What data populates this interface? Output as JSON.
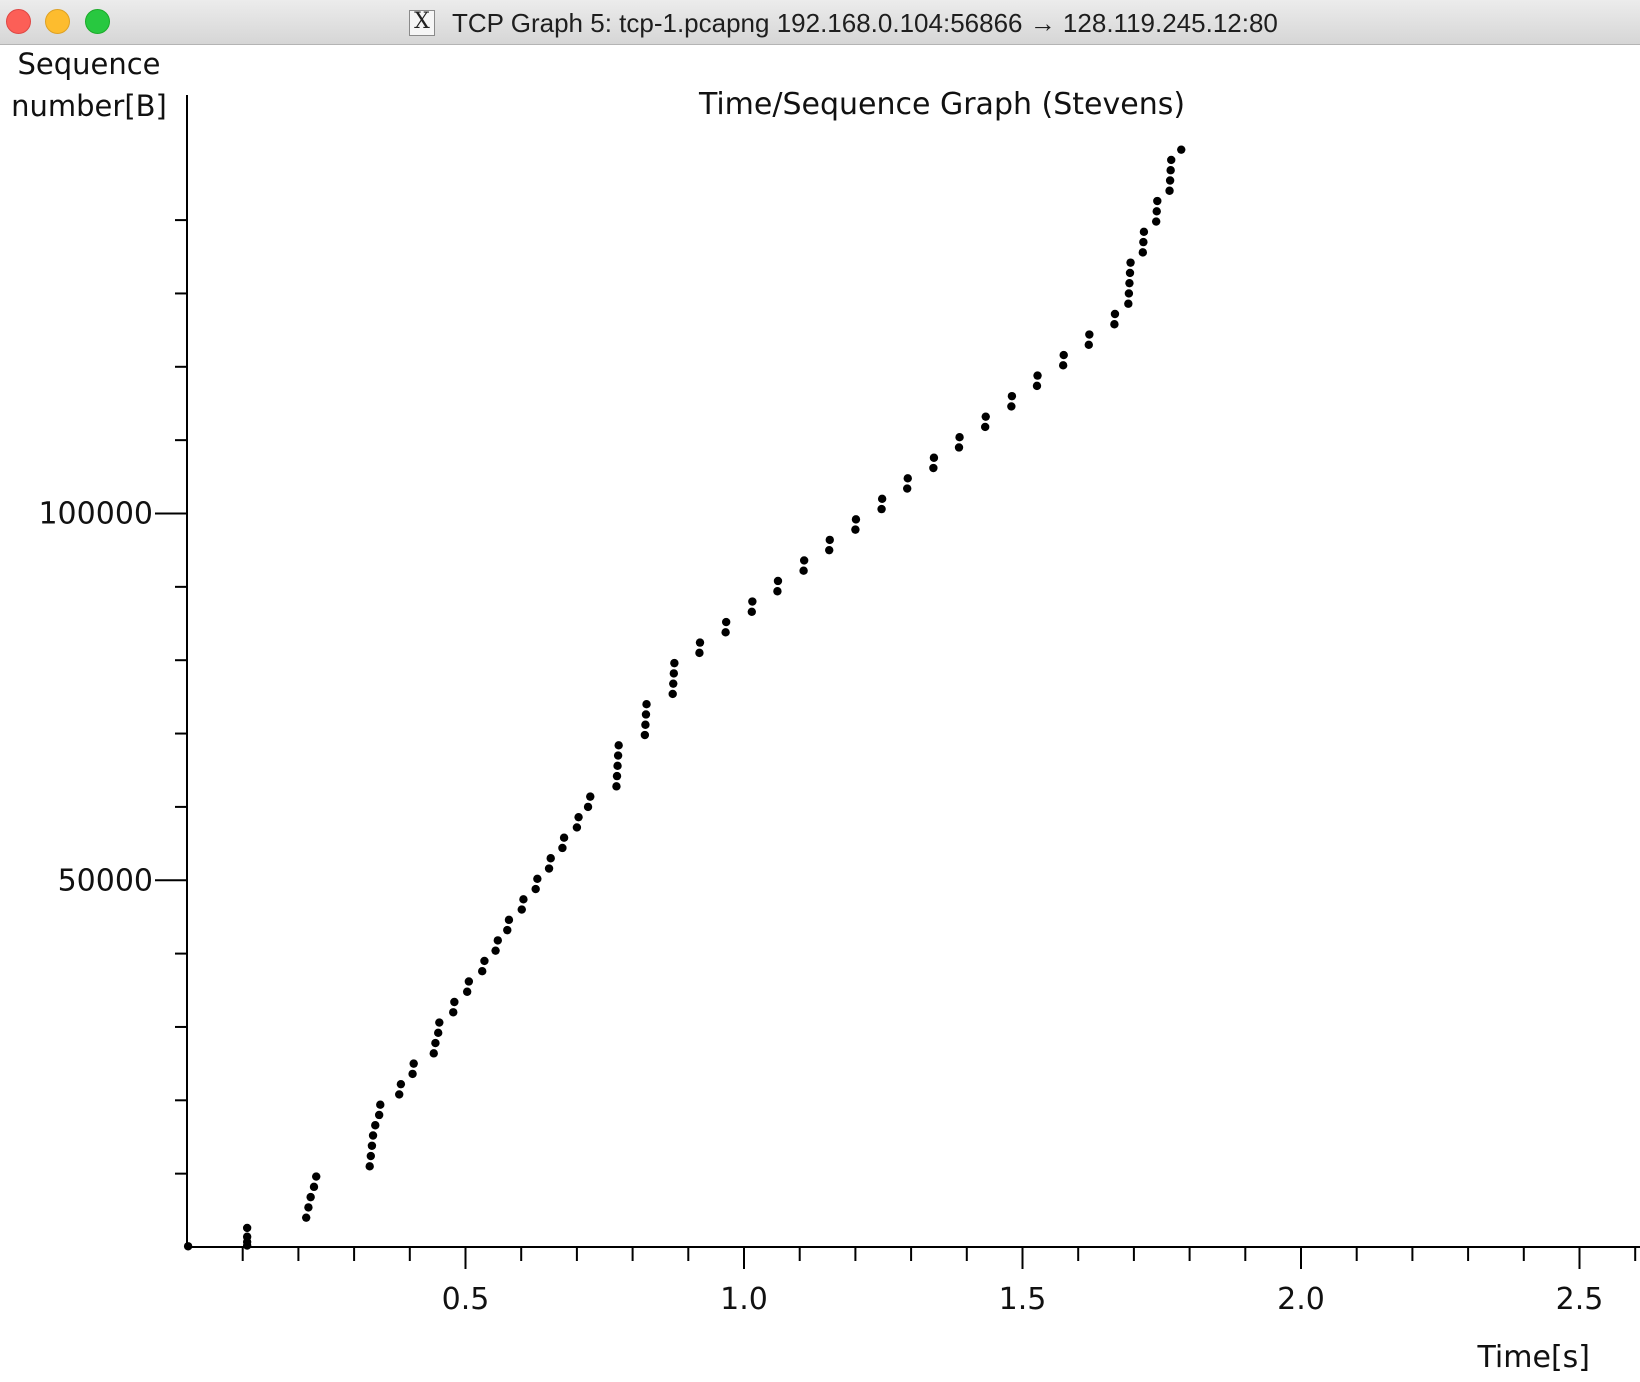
{
  "window": {
    "title": "TCP Graph 5: tcp-1.pcapng 192.168.0.104:56866 → 128.119.245.12:80",
    "icon": "x11-icon",
    "icon_glyph": "X"
  },
  "chart_data": {
    "type": "scatter",
    "title": "Time/Sequence Graph (Stevens)",
    "ylabel_lines": [
      "Sequence",
      "number[B]"
    ],
    "xlabel": "Time[s]",
    "xlim": [
      0.0,
      2.6
    ],
    "ylim": [
      0,
      145000
    ],
    "x_ticks": [
      0.5,
      1.0,
      1.5,
      2.0,
      2.5
    ],
    "x_tick_labels": [
      "0.5",
      "1.0",
      "1.5",
      "2.0",
      "2.5"
    ],
    "x_minor_step": 0.1,
    "y_ticks": [
      50000,
      100000
    ],
    "y_tick_labels": [
      "50000",
      "100000"
    ],
    "y_minor_step": 10000,
    "grid": false,
    "marker_color": "#000000",
    "series": [
      {
        "points": [
          [
            0.002,
            100
          ],
          [
            0.108,
            200
          ],
          [
            0.108,
            700
          ],
          [
            0.108,
            1400
          ],
          [
            0.108,
            2600
          ],
          [
            0.214,
            4000
          ],
          [
            0.218,
            5400
          ],
          [
            0.222,
            6800
          ],
          [
            0.228,
            8200
          ],
          [
            0.232,
            9600
          ],
          [
            0.328,
            11000
          ],
          [
            0.33,
            12400
          ],
          [
            0.332,
            13800
          ],
          [
            0.334,
            15200
          ],
          [
            0.338,
            16600
          ],
          [
            0.345,
            18000
          ],
          [
            0.347,
            19400
          ],
          [
            0.381,
            20800
          ],
          [
            0.384,
            22200
          ],
          [
            0.405,
            23600
          ],
          [
            0.407,
            25000
          ],
          [
            0.443,
            26400
          ],
          [
            0.446,
            27800
          ],
          [
            0.451,
            29200
          ],
          [
            0.453,
            30600
          ],
          [
            0.478,
            32000
          ],
          [
            0.48,
            33400
          ],
          [
            0.503,
            34800
          ],
          [
            0.506,
            36200
          ],
          [
            0.53,
            37600
          ],
          [
            0.534,
            39000
          ],
          [
            0.554,
            40400
          ],
          [
            0.558,
            41800
          ],
          [
            0.575,
            43200
          ],
          [
            0.578,
            44600
          ],
          [
            0.601,
            46000
          ],
          [
            0.604,
            47400
          ],
          [
            0.626,
            48800
          ],
          [
            0.629,
            50200
          ],
          [
            0.65,
            51600
          ],
          [
            0.653,
            53000
          ],
          [
            0.674,
            54400
          ],
          [
            0.677,
            55800
          ],
          [
            0.7,
            57200
          ],
          [
            0.703,
            58600
          ],
          [
            0.72,
            60000
          ],
          [
            0.724,
            61400
          ],
          [
            0.771,
            62800
          ],
          [
            0.772,
            64200
          ],
          [
            0.773,
            65600
          ],
          [
            0.774,
            67000
          ],
          [
            0.775,
            68400
          ],
          [
            0.822,
            69800
          ],
          [
            0.823,
            71200
          ],
          [
            0.824,
            72600
          ],
          [
            0.825,
            74000
          ],
          [
            0.872,
            75400
          ],
          [
            0.873,
            76800
          ],
          [
            0.874,
            78200
          ],
          [
            0.875,
            79600
          ],
          [
            0.92,
            81000
          ],
          [
            0.921,
            82400
          ],
          [
            0.967,
            83800
          ],
          [
            0.968,
            85200
          ],
          [
            1.014,
            86600
          ],
          [
            1.015,
            88000
          ],
          [
            1.06,
            89400
          ],
          [
            1.061,
            90800
          ],
          [
            1.107,
            92200
          ],
          [
            1.108,
            93600
          ],
          [
            1.153,
            95000
          ],
          [
            1.154,
            96400
          ],
          [
            1.2,
            97800
          ],
          [
            1.201,
            99200
          ],
          [
            1.247,
            100600
          ],
          [
            1.248,
            102000
          ],
          [
            1.293,
            103400
          ],
          [
            1.294,
            104800
          ],
          [
            1.34,
            106200
          ],
          [
            1.341,
            107600
          ],
          [
            1.386,
            109000
          ],
          [
            1.387,
            110400
          ],
          [
            1.433,
            111800
          ],
          [
            1.434,
            113200
          ],
          [
            1.48,
            114600
          ],
          [
            1.481,
            116000
          ],
          [
            1.526,
            117400
          ],
          [
            1.527,
            118800
          ],
          [
            1.573,
            120200
          ],
          [
            1.574,
            121600
          ],
          [
            1.619,
            123000
          ],
          [
            1.62,
            124400
          ],
          [
            1.665,
            125800
          ],
          [
            1.666,
            127200
          ],
          [
            1.69,
            128600
          ],
          [
            1.691,
            130000
          ],
          [
            1.692,
            131400
          ],
          [
            1.693,
            132800
          ],
          [
            1.694,
            134200
          ],
          [
            1.716,
            135600
          ],
          [
            1.717,
            137000
          ],
          [
            1.718,
            138400
          ],
          [
            1.74,
            139800
          ],
          [
            1.741,
            141200
          ],
          [
            1.742,
            142600
          ],
          [
            1.764,
            144000
          ],
          [
            1.765,
            145400
          ],
          [
            1.766,
            146800
          ],
          [
            1.767,
            148200
          ],
          [
            1.785,
            149600
          ]
        ]
      }
    ]
  }
}
